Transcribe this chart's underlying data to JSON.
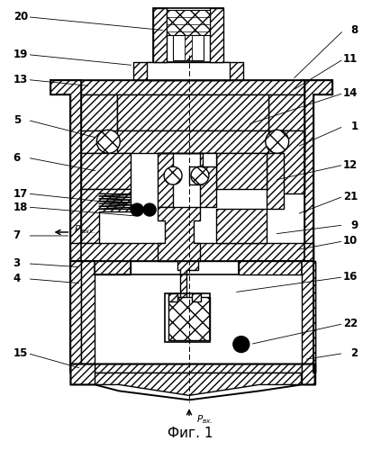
{
  "title": "Фиг. 1",
  "p_in": "Р_вх.",
  "p_out": "Р_вых.",
  "bg": "#ffffff",
  "figsize": [
    4.23,
    5.0
  ],
  "dpi": 100,
  "labels_left": [
    {
      "n": "20",
      "xn": 14,
      "yn": 18,
      "xe": 183,
      "ye": 33
    },
    {
      "n": "19",
      "xn": 14,
      "yn": 60,
      "xe": 148,
      "ye": 72
    },
    {
      "n": "13",
      "xn": 14,
      "yn": 88,
      "xe": 100,
      "ye": 95
    },
    {
      "n": "5",
      "xn": 14,
      "yn": 133,
      "xe": 108,
      "ye": 153
    },
    {
      "n": "6",
      "xn": 14,
      "yn": 175,
      "xe": 108,
      "ye": 190
    },
    {
      "n": "17",
      "xn": 14,
      "yn": 215,
      "xe": 152,
      "ye": 228
    },
    {
      "n": "18",
      "xn": 14,
      "yn": 230,
      "xe": 152,
      "ye": 240
    },
    {
      "n": "7",
      "xn": 14,
      "yn": 262,
      "xe": 78,
      "ye": 262
    },
    {
      "n": "3",
      "xn": 14,
      "yn": 293,
      "xe": 90,
      "ye": 297
    },
    {
      "n": "4",
      "xn": 14,
      "yn": 310,
      "xe": 90,
      "ye": 315
    },
    {
      "n": "15",
      "xn": 14,
      "yn": 393,
      "xe": 90,
      "ye": 410
    }
  ],
  "labels_right": [
    {
      "n": "8",
      "xn": 398,
      "yn": 33,
      "xe": 325,
      "ye": 88
    },
    {
      "n": "11",
      "xn": 398,
      "yn": 65,
      "xe": 325,
      "ye": 100
    },
    {
      "n": "14",
      "xn": 398,
      "yn": 103,
      "xe": 275,
      "ye": 138
    },
    {
      "n": "1",
      "xn": 398,
      "yn": 140,
      "xe": 330,
      "ye": 163
    },
    {
      "n": "12",
      "xn": 398,
      "yn": 183,
      "xe": 305,
      "ye": 200
    },
    {
      "n": "21",
      "xn": 398,
      "yn": 218,
      "xe": 330,
      "ye": 238
    },
    {
      "n": "9",
      "xn": 398,
      "yn": 250,
      "xe": 305,
      "ye": 260
    },
    {
      "n": "10",
      "xn": 398,
      "yn": 268,
      "xe": 328,
      "ye": 278
    },
    {
      "n": "16",
      "xn": 398,
      "yn": 308,
      "xe": 260,
      "ye": 325
    },
    {
      "n": "22",
      "xn": 398,
      "yn": 360,
      "xe": 278,
      "ye": 383
    },
    {
      "n": "2",
      "xn": 398,
      "yn": 393,
      "xe": 338,
      "ye": 400
    }
  ]
}
